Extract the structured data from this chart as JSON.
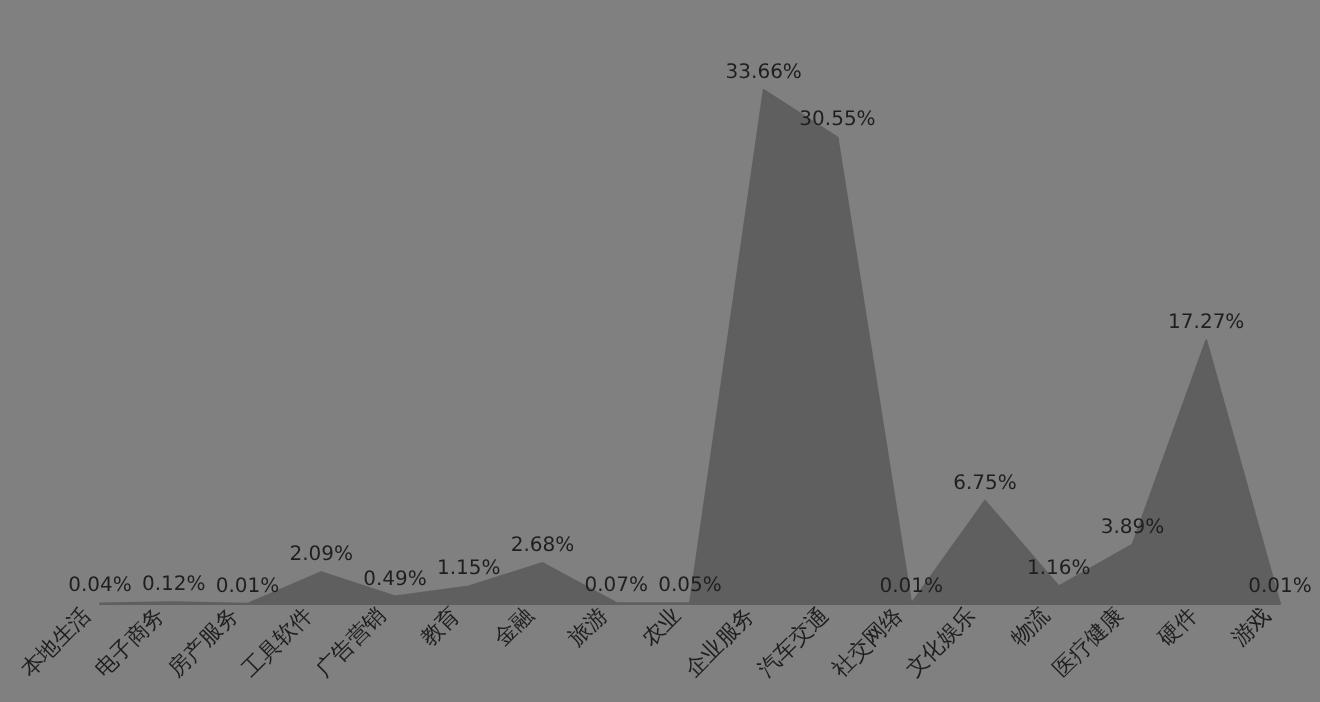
{
  "chart_data": {
    "type": "area",
    "color": "#5f5f5f",
    "categories": [
      "本地生活",
      "电子商务",
      "房产服务",
      "工具软件",
      "广告营销",
      "教育",
      "金融",
      "旅游",
      "农业",
      "企业服务",
      "汽车交通",
      "社交网络",
      "文化娱乐",
      "物流",
      "医疗健康",
      "硬件",
      "游戏"
    ],
    "values": [
      0.04,
      0.12,
      0.01,
      2.09,
      0.49,
      1.15,
      2.68,
      0.07,
      0.05,
      33.66,
      30.55,
      0.01,
      6.75,
      1.16,
      3.89,
      17.27,
      0.01
    ],
    "value_labels": [
      "0.04%",
      "0.12%",
      "0.01%",
      "2.09%",
      "0.49%",
      "1.15%",
      "2.68%",
      "0.07%",
      "0.05%",
      "33.66%",
      "30.55%",
      "0.01%",
      "6.75%",
      "1.16%",
      "3.89%",
      "17.27%",
      "0.01%"
    ]
  }
}
